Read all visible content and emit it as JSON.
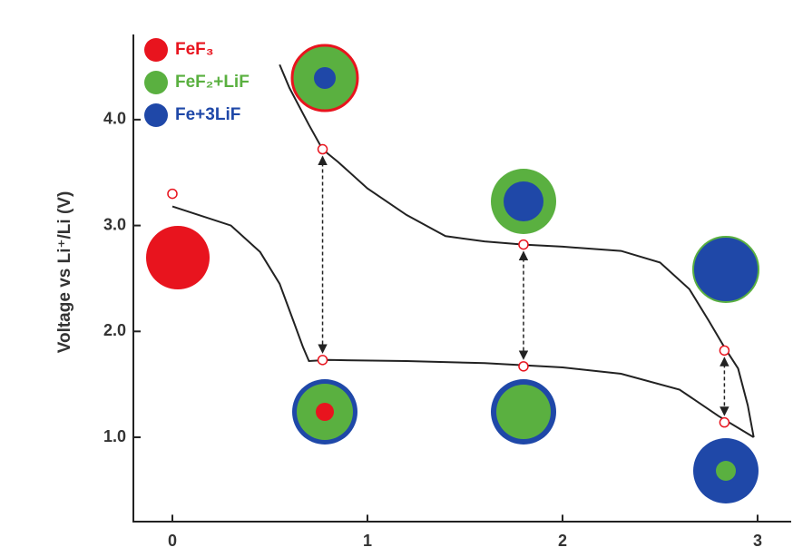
{
  "chart_data": {
    "type": "line",
    "y_label": "Voltage vs Li⁺/Li (V)",
    "xlim": [
      -0.2,
      3.17
    ],
    "ylim": [
      0.2,
      4.8
    ],
    "xticks": [
      0,
      1,
      2,
      3
    ],
    "yticks": [
      {
        "value": 1,
        "label": "1.0"
      },
      {
        "value": 2,
        "label": "2.0"
      },
      {
        "value": 3,
        "label": "3.0"
      },
      {
        "value": 4,
        "label": "4.0"
      }
    ],
    "series": [
      {
        "color": "#222222",
        "x": [
          0,
          0.1,
          0.3,
          0.45,
          0.55,
          0.62,
          0.67,
          0.7,
          0.8,
          1.2,
          1.6,
          2.0,
          2.3,
          2.6,
          2.8,
          2.98
        ],
        "values": [
          3.18,
          3.12,
          3.0,
          2.75,
          2.45,
          2.1,
          1.85,
          1.72,
          1.73,
          1.72,
          1.7,
          1.66,
          1.6,
          1.45,
          1.2,
          1.0
        ]
      },
      {
        "color": "#222222",
        "x": [
          2.98,
          2.95,
          2.9,
          2.83,
          2.75,
          2.65,
          2.5,
          2.3,
          2.0,
          1.8,
          1.6,
          1.4,
          1.2,
          1.0,
          0.85,
          0.77,
          0.7,
          0.6,
          0.55
        ],
        "values": [
          1.0,
          1.3,
          1.65,
          1.85,
          2.1,
          2.4,
          2.65,
          2.76,
          2.8,
          2.82,
          2.85,
          2.9,
          3.1,
          3.35,
          3.6,
          3.72,
          3.95,
          4.3,
          4.52
        ]
      }
    ],
    "markers": {
      "color": "#e8141e",
      "x": [
        0,
        0.77,
        0.77,
        1.8,
        1.8,
        2.83,
        2.83
      ],
      "values": [
        3.3,
        3.72,
        1.73,
        2.82,
        1.67,
        1.82,
        1.14
      ]
    },
    "legend": [
      {
        "label": "FeF₃",
        "color": "#e8141e"
      },
      {
        "label": "FeF₂+LiF",
        "color": "#5ab040"
      },
      {
        "label": "Fe+3LiF",
        "color": "#1f48a8"
      }
    ]
  }
}
